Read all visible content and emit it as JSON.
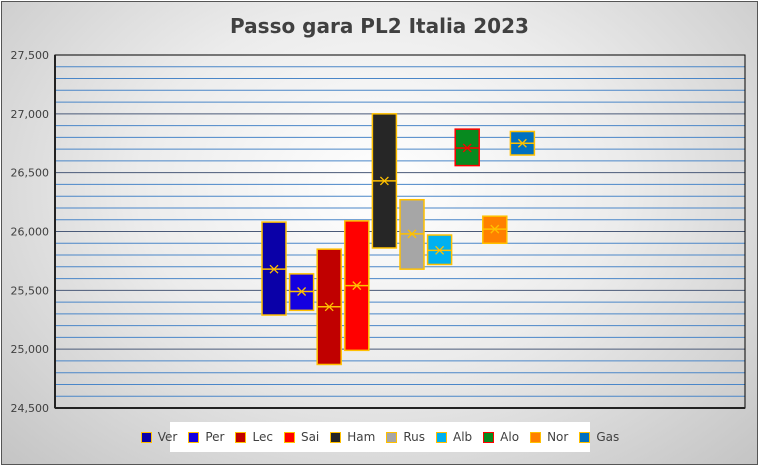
{
  "chart_data": {
    "type": "box",
    "title": "Passo gara PL2 Italia 2023",
    "xlabel": "",
    "ylabel": "",
    "ylim": [
      24500,
      27500
    ],
    "y_ticks": [
      "24,500",
      "25,000",
      "25,500",
      "26,000",
      "26,500",
      "27,000",
      "27,500"
    ],
    "y_tick_values": [
      24500,
      25000,
      25500,
      26000,
      26500,
      27000,
      27500
    ],
    "minor_grid_step": 100,
    "grid": true,
    "legend_position": "bottom",
    "border_color": "#ffc000",
    "mean_marker": "x",
    "series": [
      {
        "name": "Ver",
        "color": "#0a00a8",
        "border": "#ffc000",
        "q1": 25290,
        "median": 25680,
        "q3": 26080,
        "mean": 25680
      },
      {
        "name": "Per",
        "color": "#1400e0",
        "border": "#ffc000",
        "q1": 25330,
        "median": 25490,
        "q3": 25640,
        "mean": 25490
      },
      {
        "name": "Lec",
        "color": "#c00000",
        "border": "#ffc000",
        "q1": 24870,
        "median": 25360,
        "q3": 25850,
        "mean": 25360
      },
      {
        "name": "Sai",
        "color": "#ff0000",
        "border": "#ffc000",
        "q1": 24990,
        "median": 25540,
        "q3": 26090,
        "mean": 25540
      },
      {
        "name": "Ham",
        "color": "#262626",
        "border": "#ffc000",
        "q1": 25860,
        "median": 26430,
        "q3": 27000,
        "mean": 26430
      },
      {
        "name": "Rus",
        "color": "#a6a6a6",
        "border": "#ffc000",
        "q1": 25680,
        "median": 25980,
        "q3": 26270,
        "mean": 25980
      },
      {
        "name": "Alb",
        "color": "#00b0f0",
        "border": "#ffc000",
        "q1": 25720,
        "median": 25840,
        "q3": 25970,
        "mean": 25840
      },
      {
        "name": "Alo",
        "color": "#078a1f",
        "border": "#ff0000",
        "q1": 26560,
        "median": 26710,
        "q3": 26870,
        "mean": 26710
      },
      {
        "name": "Nor",
        "color": "#ff8000",
        "border": "#ffc000",
        "q1": 25900,
        "median": 26020,
        "q3": 26130,
        "mean": 26020
      },
      {
        "name": "Gas",
        "color": "#0070c0",
        "border": "#ffc000",
        "q1": 26650,
        "median": 26750,
        "q3": 26850,
        "mean": 26750
      }
    ]
  }
}
